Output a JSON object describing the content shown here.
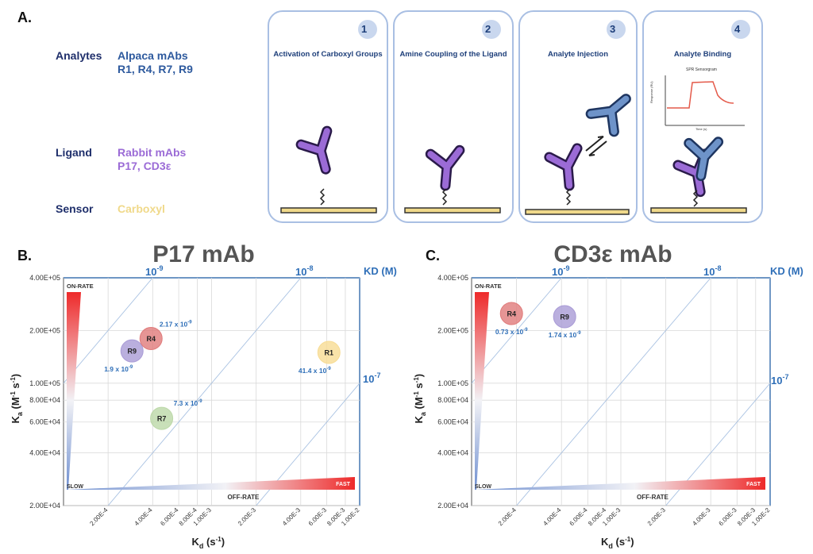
{
  "panelA": {
    "letter": "A.",
    "legend": [
      {
        "key": "Analytes",
        "value_line1": "Alpaca mAbs",
        "value_line2": "R1, R4, R7, R9",
        "color": "#2e5a9e"
      },
      {
        "key": "Ligand",
        "value_line1": "Rabbit mAbs",
        "value_line2": "P17, CD3ε",
        "color": "#9b6bd6"
      },
      {
        "key": "Sensor",
        "value_line1": "Carboxyl",
        "value_line2": "",
        "color": "#f0d98a"
      }
    ],
    "steps": [
      {
        "number": "1",
        "title": "Activation of Carboxyl Groups"
      },
      {
        "number": "2",
        "title": "Amine Coupling of the Ligand"
      },
      {
        "number": "3",
        "title": "Analyte Injection"
      },
      {
        "number": "4",
        "title": "Analyte Binding"
      }
    ],
    "sensorgram": {
      "title": "SPR Sensorgram",
      "ylabel": "Response (RU)",
      "xlabel": "Time (s)"
    }
  },
  "charts": [
    {
      "letter": "B.",
      "title": "P17  mAb",
      "ytick_labels": [
        "4.00E+05",
        "2.00E+05",
        "1.00E+05",
        "8.00E+04",
        "6.00E+04",
        "4.00E+04",
        "2.00E+04"
      ],
      "xtick_labels": [
        "2.00E-4",
        "4.00E-4",
        "6.00E-4",
        "8.00E-4",
        "1.00E-3",
        "2.00E-3",
        "4.00E-3",
        "6.00E-3",
        "8.00E-3",
        "1.00E-2"
      ],
      "kd_labels": {
        "base": [
          "10",
          "10",
          "10"
        ],
        "exp": [
          "-9",
          "-8",
          "-7"
        ],
        "title": "KD (M)"
      },
      "ylabel": {
        "main": "K",
        "sub": "a",
        "rest": " (M",
        "sup1": "-1",
        "mid": " s",
        "sup2": "-1",
        "end": ")"
      },
      "xlabel": {
        "main": "K",
        "sub": "d",
        "rest": " (s",
        "sup": "-1",
        "end": ")"
      },
      "on_rate": "ON-RATE",
      "off_rate": "OFF-RATE",
      "slow": "SLOW",
      "fast": "FAST",
      "chart_data": {
        "type": "scatter",
        "x_scale": "log",
        "y_scale": "log",
        "xlim": [
          0.0001,
          0.01
        ],
        "ylim": [
          20000,
          400000
        ],
        "points": [
          {
            "label": "R9",
            "kd": 0.00029,
            "ka": 153000,
            "KD": "1.9 x 10",
            "KD_exp": "-9",
            "color": "#a99bd6"
          },
          {
            "label": "R4",
            "kd": 0.00039,
            "ka": 180000,
            "KD": "2.17 x 10",
            "KD_exp": "-9",
            "color": "#e07b7b"
          },
          {
            "label": "R7",
            "kd": 0.00046,
            "ka": 63000,
            "KD": "7.3 x 10",
            "KD_exp": "-9",
            "color": "#bcd8a8"
          },
          {
            "label": "R1",
            "kd": 0.0062,
            "ka": 150000,
            "KD": "41.4 x 10",
            "KD_exp": "-9",
            "color": "#f7dc94"
          }
        ]
      }
    },
    {
      "letter": "C.",
      "title": "CD3ε mAb",
      "ytick_labels": [
        "4.00E+05",
        "2.00E+05",
        "1.00E+05",
        "8.00E+04",
        "6.00E+04",
        "4.00E+04",
        "2.00E+04"
      ],
      "xtick_labels": [
        "2.00E-4",
        "4.00E-4",
        "6.00E-4",
        "8.00E-4",
        "1.00E-3",
        "2.00E-3",
        "4.00E-3",
        "6.00E-3",
        "8.00E-3",
        "1.00E-2"
      ],
      "kd_labels": {
        "base": [
          "10",
          "10",
          "10"
        ],
        "exp": [
          "-9",
          "-8",
          "-7"
        ],
        "title": "KD (M)"
      },
      "ylabel": {
        "main": "K",
        "sub": "a",
        "rest": " (M",
        "sup1": "-1",
        "mid": " s",
        "sup2": "-1",
        "end": ")"
      },
      "xlabel": {
        "main": "K",
        "sub": "d",
        "rest": " (s",
        "sup": "-1",
        "end": ")"
      },
      "on_rate": "ON-RATE",
      "off_rate": "OFF-RATE",
      "slow": "SLOW",
      "fast": "FAST",
      "chart_data": {
        "type": "scatter",
        "x_scale": "log",
        "y_scale": "log",
        "xlim": [
          0.0001,
          0.01
        ],
        "ylim": [
          20000,
          400000
        ],
        "points": [
          {
            "label": "R4",
            "kd": 0.000185,
            "ka": 250000,
            "KD": "0.73 x 10",
            "KD_exp": "-9",
            "color": "#e07b7b"
          },
          {
            "label": "R9",
            "kd": 0.00042,
            "ka": 240000,
            "KD": "1.74 x 10",
            "KD_exp": "-9",
            "color": "#a99bd6"
          }
        ]
      }
    }
  ]
}
